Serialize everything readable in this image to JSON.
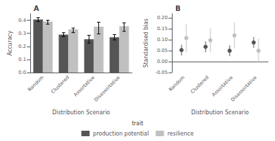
{
  "chart_data": [
    {
      "type": "bar",
      "title": "A",
      "xlabel": "Distribution Scenario",
      "ylabel": "Accuracy",
      "categories": [
        "Random",
        "Clustered",
        "Assortative",
        "Disassortative"
      ],
      "series": [
        {
          "name": "production potential",
          "color": "#555555",
          "values": [
            0.405,
            0.29,
            0.255,
            0.27
          ],
          "err_low": [
            0.015,
            0.015,
            0.03,
            0.02
          ],
          "err_high": [
            0.015,
            0.015,
            0.03,
            0.02
          ]
        },
        {
          "name": "resilience",
          "color": "#c0c0c0",
          "values": [
            0.39,
            0.33,
            0.35,
            0.355
          ],
          "err_low": [
            0.02,
            0.025,
            0.055,
            0.04
          ],
          "err_high": [
            0.01,
            0.01,
            0.035,
            0.025
          ]
        }
      ],
      "ylim": [
        0.0,
        0.45
      ],
      "yticks": [
        {
          "value": 0.0,
          "label": "0.0"
        },
        {
          "value": 0.1,
          "label": "0.1"
        },
        {
          "value": 0.2,
          "label": "0.2"
        },
        {
          "value": 0.3,
          "label": "0.3"
        },
        {
          "value": 0.4,
          "label": "0.4"
        }
      ],
      "grid": false,
      "legend": "bottom",
      "legend_title": "trait"
    },
    {
      "type": "scatter",
      "title": "B",
      "xlabel": "Distribution Scenario",
      "ylabel": "Standardised bias",
      "categories": [
        "Random",
        "Clustered",
        "Assortative",
        "Disassortative"
      ],
      "series": [
        {
          "name": "production potential",
          "color": "#555555",
          "values": [
            0.053,
            0.068,
            0.05,
            0.088
          ],
          "err_low": [
            0.025,
            0.025,
            0.025,
            0.025
          ],
          "err_high": [
            0.025,
            0.025,
            0.025,
            0.025
          ]
        },
        {
          "name": "resilience",
          "color": "#c0c0c0",
          "values": [
            0.108,
            0.098,
            0.12,
            0.05
          ],
          "err_low": [
            0.065,
            0.055,
            0.06,
            0.055
          ],
          "err_high": [
            0.065,
            0.055,
            0.06,
            0.055
          ]
        }
      ],
      "ylim": [
        -0.05,
        0.22
      ],
      "yticks": [
        {
          "value": -0.05,
          "label": "-0.05"
        },
        {
          "value": 0.0,
          "label": "0.00"
        },
        {
          "value": 0.05,
          "label": "0.05"
        },
        {
          "value": 0.1,
          "label": "0.10"
        },
        {
          "value": 0.15,
          "label": "0.15"
        },
        {
          "value": 0.2,
          "label": "0.20"
        }
      ],
      "grid": false
    }
  ]
}
